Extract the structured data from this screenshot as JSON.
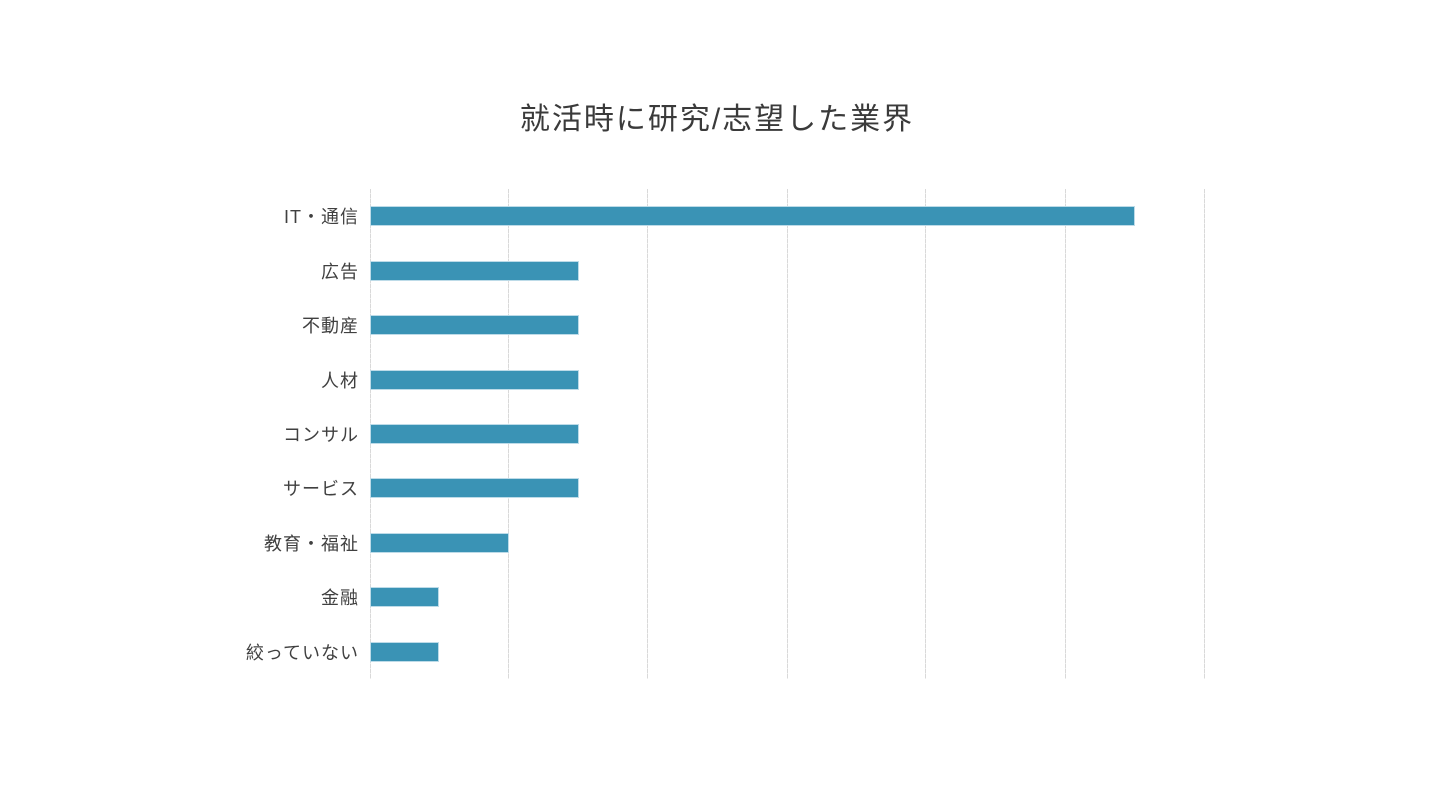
{
  "page": {
    "background_color": "#ffffff"
  },
  "chart_data": {
    "type": "bar",
    "orientation": "horizontal",
    "title": "就活時に研究/志望した業界",
    "categories": [
      "IT・通信",
      "広告",
      "不動産",
      "人材",
      "コンサル",
      "サービス",
      "教育・福祉",
      "金融",
      "絞っていない"
    ],
    "values": [
      11,
      3,
      3,
      3,
      3,
      3,
      2,
      1,
      1
    ],
    "xlabel": "",
    "ylabel": "",
    "xlim": [
      0,
      12
    ],
    "x_tick_interval": 2,
    "x_tick_labels_visible": false,
    "grid": true,
    "legend": "none",
    "bar_color": "#3a93b5",
    "grid_color": "#d9d9d9",
    "title_color": "#3a3a3a",
    "label_color": "#404040"
  }
}
